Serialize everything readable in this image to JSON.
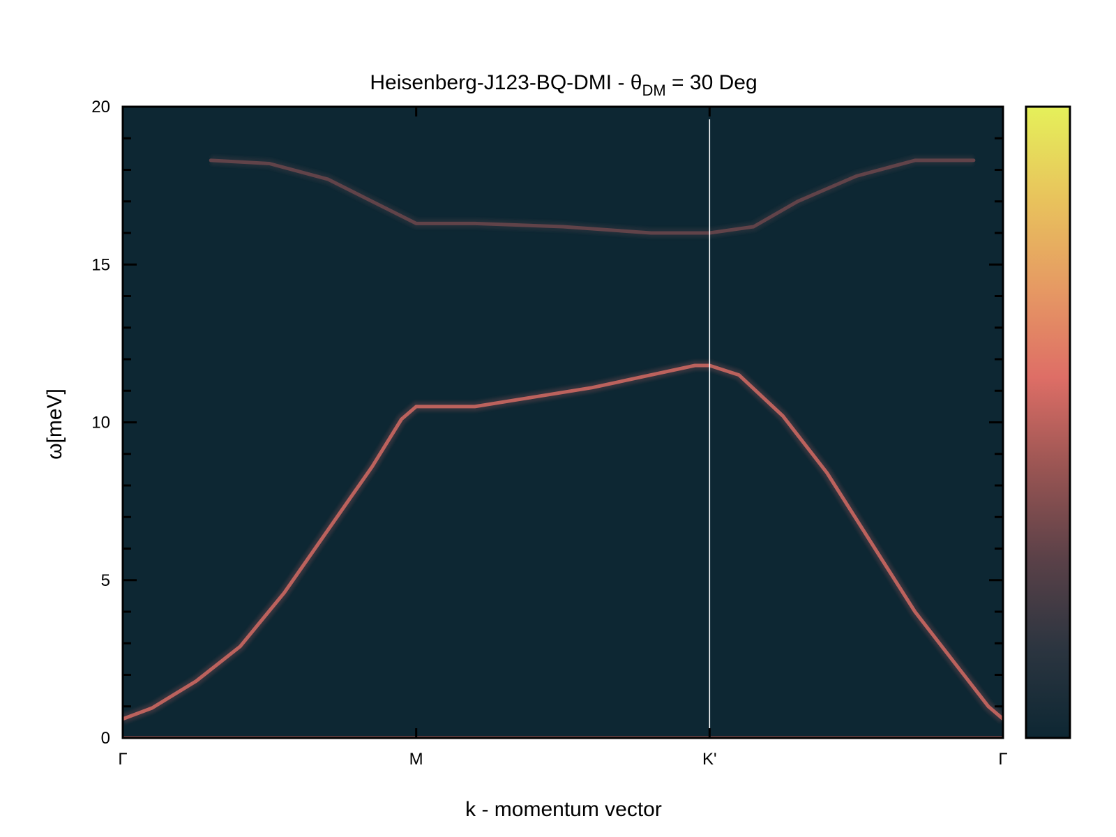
{
  "chart_data": {
    "type": "heatmap",
    "title": "Heisenberg-J123-BQ-DMI - θ",
    "title_subscript": "DM",
    "title_suffix": " = 30 Deg",
    "xlabel": "k - momentum vector",
    "ylabel": "ω[meV]",
    "ylim": [
      0,
      20
    ],
    "y_ticks": [
      0,
      5,
      10,
      15,
      20
    ],
    "x_ticks": [
      {
        "label": "Γ",
        "k": 0
      },
      {
        "label": "M",
        "k": 1
      },
      {
        "label": "K'",
        "k": 2
      },
      {
        "label": "Γ",
        "k": 3
      }
    ],
    "xlim": [
      0,
      3
    ],
    "colormap": [
      "#0d2733",
      "#2c3540",
      "#5b4148",
      "#9a5553",
      "#de6e66",
      "#e69a63",
      "#e8c45c",
      "#e5f05a"
    ],
    "background_color": "#0d2733",
    "branches": [
      {
        "name": "",
        "points": [
          [
            0,
            0.6
          ],
          [
            0.1,
            0.95
          ],
          [
            0.25,
            1.8
          ],
          [
            0.4,
            2.9
          ],
          [
            0.55,
            4.6
          ],
          [
            0.7,
            6.6
          ],
          [
            0.85,
            8.6
          ],
          [
            0.95,
            10.1
          ],
          [
            1.0,
            10.5
          ],
          [
            1.2,
            10.5
          ],
          [
            1.4,
            10.8
          ],
          [
            1.6,
            11.1
          ],
          [
            1.8,
            11.5
          ],
          [
            1.95,
            11.8
          ],
          [
            2.0,
            11.8
          ],
          [
            2.1,
            11.5
          ],
          [
            2.25,
            10.2
          ],
          [
            2.4,
            8.4
          ],
          [
            2.55,
            6.2
          ],
          [
            2.7,
            4.0
          ],
          [
            2.85,
            2.2
          ],
          [
            2.95,
            1.0
          ],
          [
            3.0,
            0.6
          ]
        ],
        "intensity": 0.5
      },
      {
        "name": "",
        "points": [
          [
            0.3,
            18.3
          ],
          [
            0.5,
            18.2
          ],
          [
            0.7,
            17.7
          ],
          [
            0.85,
            17.0
          ],
          [
            1.0,
            16.3
          ],
          [
            1.2,
            16.3
          ],
          [
            1.5,
            16.2
          ],
          [
            1.8,
            16.0
          ],
          [
            2.0,
            16.0
          ],
          [
            2.15,
            16.2
          ],
          [
            2.3,
            17.0
          ],
          [
            2.5,
            17.8
          ],
          [
            2.7,
            18.3
          ],
          [
            2.9,
            18.3
          ]
        ],
        "intensity": 0.3
      },
      {
        "name": "",
        "points": [
          [
            0,
            0.0
          ],
          [
            3,
            0.0
          ]
        ],
        "intensity": 0.45
      }
    ]
  }
}
